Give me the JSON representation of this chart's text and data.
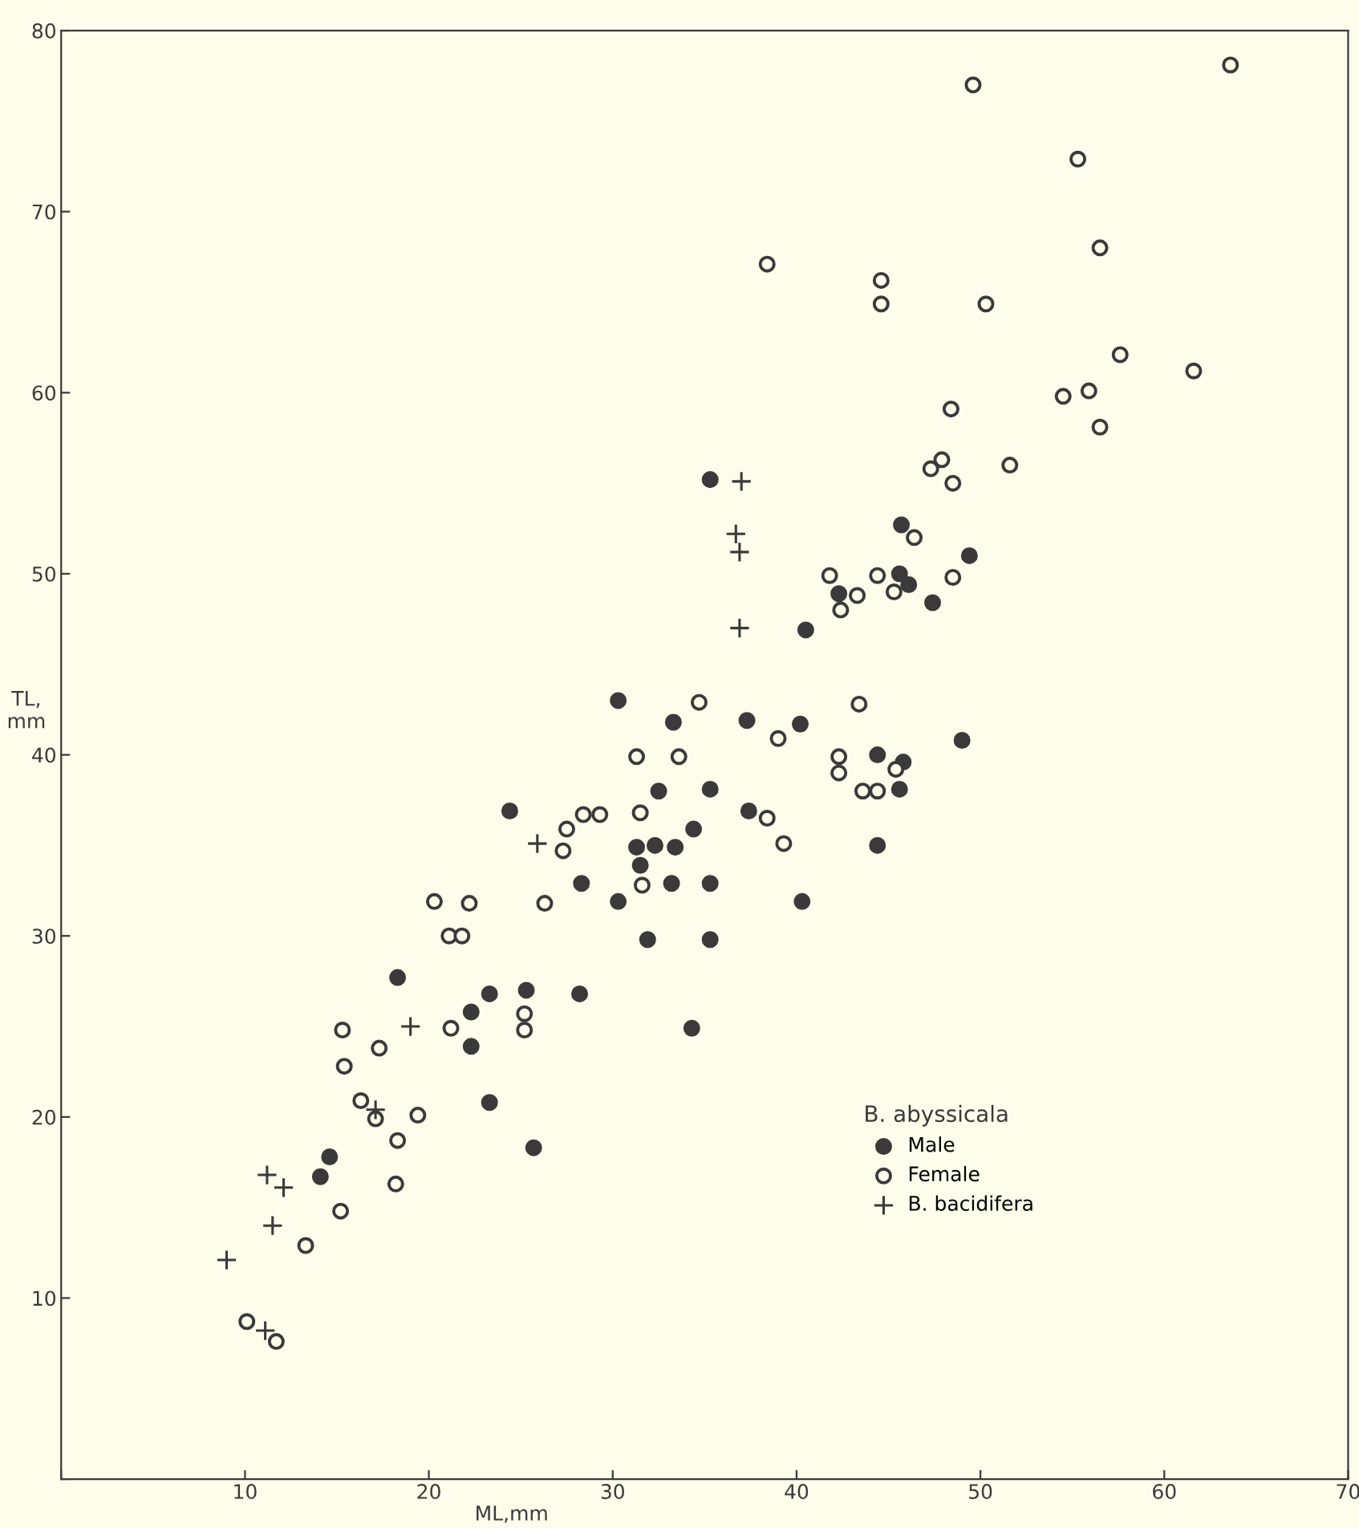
{
  "chart_data": {
    "type": "scatter",
    "xlabel": "ML,mm",
    "ylabel": "TL,\nmm",
    "legend_title": "B. abyssicala",
    "legend": "bottom right",
    "grid": false,
    "xlim": [
      0,
      70
    ],
    "xticks": [
      {
        "value": 0,
        "label": null
      },
      10,
      20,
      30,
      40,
      50,
      60,
      70
    ],
    "ylim": [
      0,
      80
    ],
    "yticks": [
      {
        "value": 0,
        "label": null
      },
      10,
      20,
      30,
      40,
      50,
      60,
      70,
      80
    ],
    "series": [
      {
        "name": "Male",
        "color": "#3a3a3a",
        "marker": "circle",
        "x": [
          35.3,
          45.7,
          49.4,
          45.6,
          46.1,
          42.3,
          47.4,
          40.5,
          30.3,
          33.3,
          37.3,
          40.2,
          44.4,
          45.8,
          45.6,
          49.0,
          32.5,
          35.3,
          24.4,
          37.4,
          34.4,
          31.3,
          32.3,
          33.4,
          31.5,
          28.3,
          33.2,
          35.3,
          44.4,
          30.3,
          40.3,
          31.9,
          35.3,
          18.3,
          23.3,
          25.3,
          28.2,
          22.3,
          22.3,
          34.3,
          23.3,
          25.7,
          14.6,
          14.1
        ],
        "values": [
          55.2,
          52.7,
          51.0,
          50.0,
          49.4,
          48.9,
          48.4,
          46.9,
          43.0,
          41.8,
          41.9,
          41.7,
          40.0,
          39.6,
          38.1,
          40.8,
          38.0,
          38.1,
          36.9,
          36.9,
          35.9,
          34.9,
          35.0,
          34.9,
          33.9,
          32.9,
          32.9,
          32.9,
          35.0,
          31.9,
          31.9,
          29.8,
          29.8,
          27.7,
          26.8,
          27.0,
          26.8,
          25.8,
          23.9,
          24.9,
          20.8,
          18.3,
          17.8,
          16.7
        ]
      },
      {
        "name": "Female",
        "color": "#3a3a3a",
        "marker": "circle",
        "x": [
          63.6,
          49.6,
          55.3,
          56.5,
          38.4,
          44.6,
          44.6,
          50.3,
          57.6,
          61.6,
          54.5,
          55.9,
          56.5,
          48.4,
          47.9,
          47.3,
          48.5,
          51.6,
          46.4,
          41.8,
          44.4,
          48.5,
          43.3,
          45.3,
          42.4,
          34.7,
          39.0,
          43.4,
          31.3,
          33.6,
          42.3,
          42.3,
          45.4,
          43.6,
          44.4,
          28.4,
          29.3,
          31.5,
          38.4,
          27.5,
          27.3,
          39.3,
          31.6,
          20.3,
          22.2,
          26.3,
          21.1,
          21.8,
          25.2,
          25.2,
          15.3,
          21.2,
          17.3,
          15.4,
          16.3,
          17.1,
          19.4,
          18.3,
          18.2,
          15.2,
          13.3,
          10.1,
          11.7
        ],
        "values": [
          78.1,
          77.0,
          72.9,
          68.0,
          67.1,
          66.2,
          64.9,
          64.9,
          62.1,
          61.2,
          59.8,
          60.1,
          58.1,
          59.1,
          56.3,
          55.8,
          55.0,
          56.0,
          52.0,
          49.9,
          49.9,
          49.8,
          48.8,
          49.0,
          48.0,
          42.9,
          40.9,
          42.8,
          39.9,
          39.9,
          39.9,
          39.0,
          39.2,
          38.0,
          38.0,
          36.7,
          36.7,
          36.8,
          36.5,
          35.9,
          34.7,
          35.1,
          32.8,
          31.9,
          31.8,
          31.8,
          30.0,
          30.0,
          25.7,
          24.8,
          24.8,
          24.9,
          23.8,
          22.8,
          20.9,
          19.9,
          20.1,
          18.7,
          16.3,
          14.8,
          12.9,
          8.7,
          7.6
        ]
      },
      {
        "name": "B. bacidifera",
        "color": "#3a3a3a",
        "marker": "cross",
        "x": [
          37.0,
          36.7,
          36.9,
          36.9,
          25.9,
          19.0,
          17.1,
          11.2,
          12.1,
          11.5,
          9.0,
          11.1
        ],
        "values": [
          55.1,
          52.2,
          51.2,
          47.0,
          35.1,
          25.0,
          20.4,
          16.8,
          16.1,
          14.0,
          12.1,
          8.2
        ]
      }
    ]
  }
}
